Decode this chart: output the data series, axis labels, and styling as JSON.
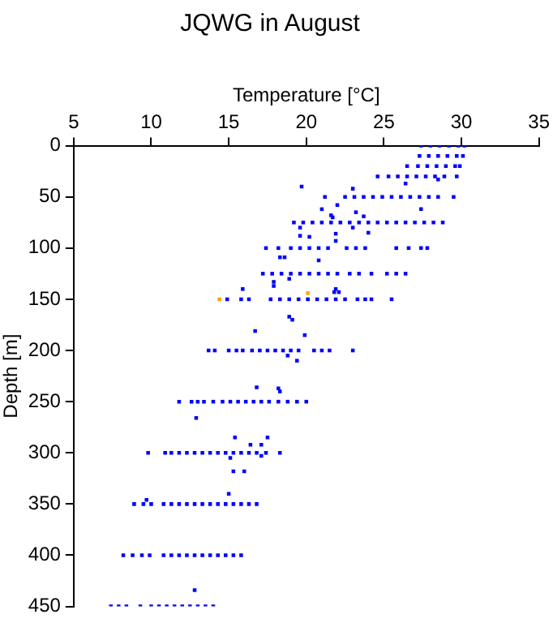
{
  "chart_data": {
    "type": "scatter",
    "title": "JQWG in August",
    "xlabel": "Temperature [°C]",
    "ylabel": "Depth [m]",
    "xlim": [
      5,
      35
    ],
    "xticks": [
      5,
      10,
      15,
      20,
      25,
      30,
      35
    ],
    "ylim": [
      450,
      0
    ],
    "yticks": [
      0,
      50,
      100,
      150,
      200,
      250,
      300,
      350,
      400,
      450
    ],
    "grid": false,
    "legend": false,
    "marker": "square",
    "series": [
      {
        "color": "#0000ff",
        "x": [
          27.4,
          28.0,
          28.6,
          29.2,
          29.8,
          30.2,
          27.3,
          27.9,
          28.5,
          29.1,
          29.7,
          30.1,
          26.5,
          27.2,
          27.8,
          28.4,
          29.0,
          29.6,
          29.9,
          24.6,
          25.3,
          25.9,
          26.5,
          27.1,
          27.7,
          28.3,
          28.9,
          29.7,
          21.2,
          22.5,
          23.1,
          23.7,
          24.3,
          24.9,
          25.5,
          26.1,
          26.7,
          27.3,
          27.9,
          28.5,
          29.5,
          19.2,
          19.8,
          20.4,
          21.0,
          21.6,
          22.2,
          22.8,
          23.4,
          24.0,
          24.6,
          25.2,
          25.8,
          26.4,
          27.0,
          27.6,
          28.2,
          28.8,
          17.4,
          18.2,
          19.0,
          19.6,
          20.2,
          20.8,
          21.4,
          22.6,
          23.2,
          23.8,
          25.8,
          26.6,
          27.4,
          27.8,
          17.2,
          17.8,
          18.4,
          19.0,
          19.6,
          20.2,
          20.8,
          21.4,
          22.0,
          22.8,
          23.4,
          24.2,
          25.2,
          25.8,
          26.4,
          14.9,
          15.8,
          16.3,
          17.7,
          18.3,
          18.9,
          19.5,
          20.1,
          20.7,
          21.3,
          21.9,
          22.5,
          23.3,
          23.8,
          24.2,
          25.5,
          13.7,
          14.1,
          15.0,
          15.5,
          15.9,
          16.5,
          17.0,
          17.5,
          18.0,
          18.5,
          19.0,
          19.5,
          20.5,
          21.0,
          21.5,
          23.0,
          11.8,
          12.6,
          13.0,
          13.4,
          14.0,
          14.6,
          15.1,
          15.6,
          16.1,
          16.6,
          17.1,
          17.6,
          18.2,
          18.8,
          19.4,
          20.0,
          9.8,
          10.9,
          11.3,
          11.8,
          12.3,
          12.8,
          13.3,
          13.8,
          14.3,
          14.8,
          15.3,
          15.8,
          16.3,
          16.8,
          17.4,
          18.3,
          8.9,
          9.5,
          10.0,
          10.8,
          11.3,
          11.8,
          12.3,
          12.8,
          13.3,
          13.8,
          14.3,
          14.8,
          15.3,
          15.8,
          16.3,
          16.8,
          8.2,
          8.8,
          9.4,
          9.9,
          10.8,
          11.3,
          11.8,
          12.3,
          12.8,
          13.3,
          13.8,
          14.3,
          14.8,
          15.3,
          15.8,
          7.4,
          7.9,
          8.4,
          9.3,
          10.0,
          10.5,
          11.0,
          11.5,
          12.0,
          12.5,
          13.0,
          13.5,
          14.0,
          19.7,
          23.0,
          26.4,
          28.5,
          22.0,
          21.0,
          27.4,
          23.2,
          21.6,
          23.7,
          21.7,
          19.6,
          23.0,
          24.0,
          21.9,
          19.6,
          20.2,
          21.9,
          18.3,
          18.6,
          20.8,
          18.9,
          17.9,
          17.9,
          15.9,
          21.9,
          21.8,
          22.1,
          18.9,
          19.1,
          16.7,
          19.9,
          18.8,
          19.4,
          16.8,
          18.2,
          18.3,
          12.9,
          15.4,
          17.5,
          16.4,
          17.1,
          17.1,
          15.1,
          15.3,
          16.0,
          15.0,
          9.7,
          12.8
        ],
        "values": [
          0,
          0,
          0,
          0,
          0,
          0,
          10,
          10,
          10,
          10,
          10,
          10,
          20,
          20,
          20,
          20,
          20,
          20,
          20,
          30,
          30,
          30,
          30,
          30,
          30,
          30,
          30,
          30,
          50,
          50,
          50,
          50,
          50,
          50,
          50,
          50,
          50,
          50,
          50,
          50,
          50,
          75,
          75,
          75,
          75,
          75,
          75,
          75,
          75,
          75,
          75,
          75,
          75,
          75,
          75,
          75,
          75,
          75,
          100,
          100,
          100,
          100,
          100,
          100,
          100,
          100,
          100,
          100,
          100,
          100,
          100,
          100,
          125,
          125,
          125,
          125,
          125,
          125,
          125,
          125,
          125,
          125,
          125,
          125,
          125,
          125,
          125,
          150,
          150,
          150,
          150,
          150,
          150,
          150,
          150,
          150,
          150,
          150,
          150,
          150,
          150,
          150,
          150,
          200,
          200,
          200,
          200,
          200,
          200,
          200,
          200,
          200,
          200,
          200,
          200,
          200,
          200,
          200,
          200,
          250,
          250,
          250,
          250,
          250,
          250,
          250,
          250,
          250,
          250,
          250,
          250,
          250,
          250,
          250,
          250,
          300,
          300,
          300,
          300,
          300,
          300,
          300,
          300,
          300,
          300,
          300,
          300,
          300,
          300,
          300,
          300,
          350,
          350,
          350,
          350,
          350,
          350,
          350,
          350,
          350,
          350,
          350,
          350,
          350,
          350,
          350,
          350,
          400,
          400,
          400,
          400,
          400,
          400,
          400,
          400,
          400,
          400,
          400,
          400,
          400,
          400,
          400,
          450,
          450,
          450,
          450,
          450,
          450,
          450,
          450,
          450,
          450,
          450,
          450,
          450,
          40,
          42,
          37,
          33,
          58,
          62,
          62,
          65,
          68,
          69,
          70,
          80,
          80,
          85,
          86,
          88,
          89,
          93,
          109,
          109,
          112,
          130,
          133,
          137,
          140,
          140,
          143,
          143,
          167,
          170,
          181,
          185,
          205,
          210,
          236,
          237,
          240,
          266,
          285,
          285,
          292,
          292,
          303,
          305,
          318,
          318,
          340,
          346,
          434
        ]
      },
      {
        "color": "#ffa500",
        "x": [
          14.4,
          20.1
        ],
        "values": [
          150,
          144
        ]
      }
    ]
  }
}
